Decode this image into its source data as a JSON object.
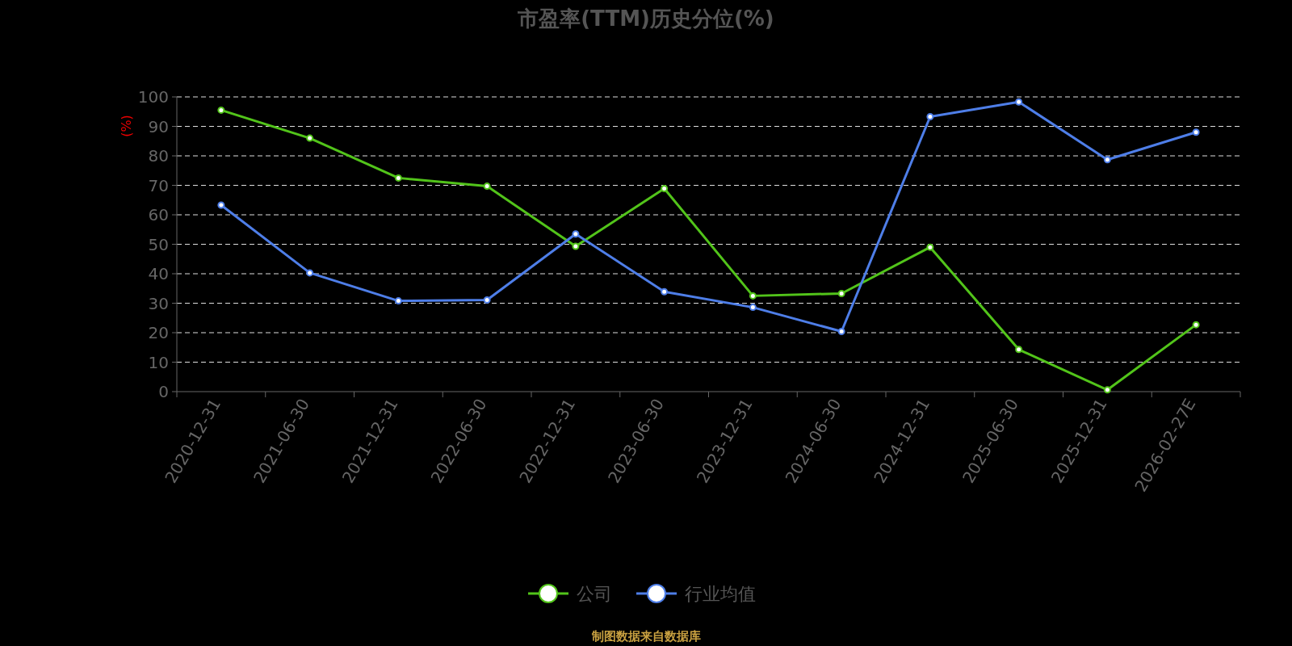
{
  "chart_data": {
    "type": "line",
    "title": "市盈率(TTM)历史分位(%)",
    "ylabel": "(%)",
    "categories": [
      "2020-12-31",
      "2021-06-30",
      "2021-12-31",
      "2022-06-30",
      "2022-12-31",
      "2023-06-30",
      "2023-12-31",
      "2024-06-30",
      "2024-12-31",
      "2025-06-30",
      "2025-12-31",
      "2026-02-27E"
    ],
    "series": [
      {
        "name": "公司",
        "color": "#52c41a",
        "values": [
          95.5,
          86,
          72.5,
          69.7,
          49.3,
          68.9,
          32.5,
          33.3,
          49,
          14.3,
          0.6,
          22.7
        ]
      },
      {
        "name": "行业均值",
        "color": "#4e7ee8",
        "values": [
          63.3,
          40.3,
          30.8,
          31.1,
          53.5,
          33.9,
          28.6,
          20.4,
          93.3,
          98.3,
          78.7,
          88
        ]
      }
    ],
    "ylim": [
      0,
      100
    ],
    "yticks": [
      0,
      10,
      20,
      30,
      40,
      50,
      60,
      70,
      80,
      90,
      100
    ],
    "grid": "y",
    "legend": "bottom",
    "marker": "circle",
    "line_style": "solid",
    "annotations": [
      "制图数据来自数据库"
    ]
  }
}
